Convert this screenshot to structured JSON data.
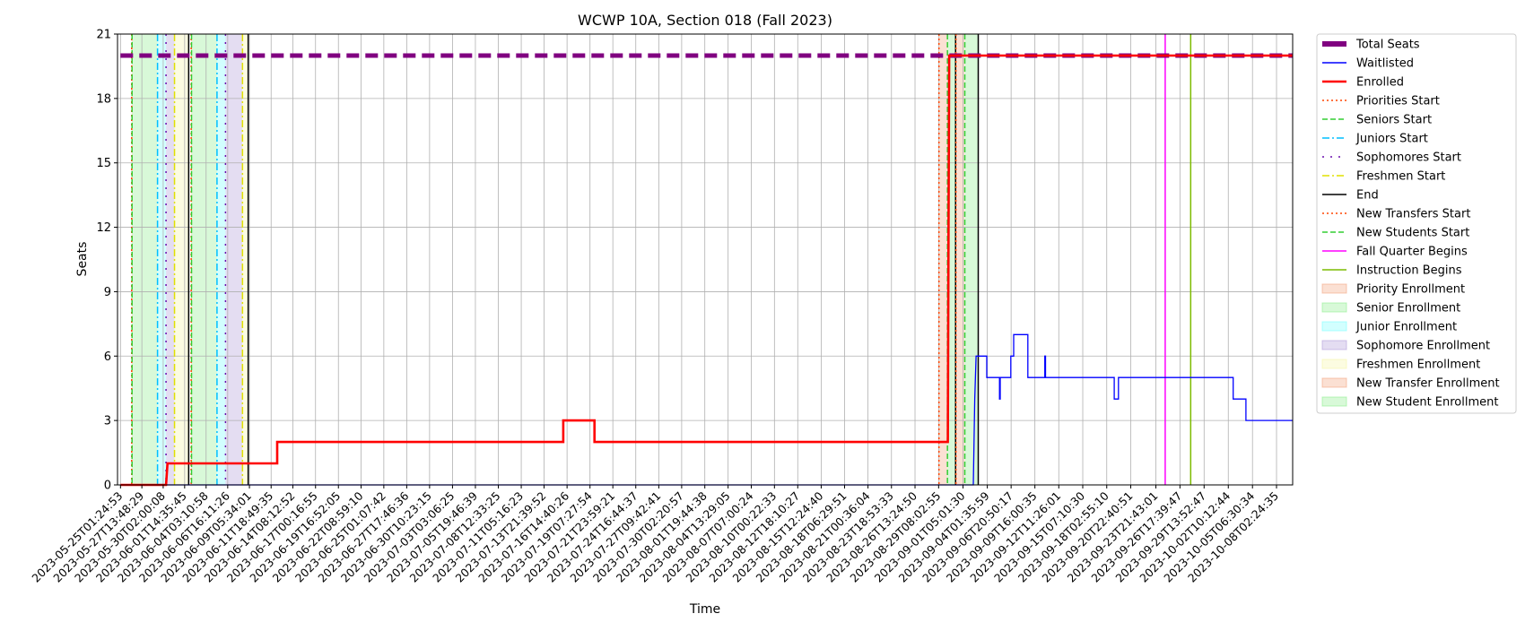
{
  "chart_data": {
    "type": "line",
    "title": "WCWP 10A, Section 018 (Fall 2023)",
    "xlabel": "Time",
    "ylabel": "Seats",
    "x_axis": "datetime",
    "xlim": [
      "2023-05-24T17:00:00",
      "2023-10-10T00:00:00"
    ],
    "ylim": [
      0,
      21
    ],
    "yticks": [
      0,
      3,
      6,
      9,
      12,
      15,
      18,
      21
    ],
    "xticks": [
      "2023-05-25T01:24:53",
      "2023-05-27T13:48:29",
      "2023-05-30T02:00:08",
      "2023-06-01T14:35:45",
      "2023-06-04T03:10:58",
      "2023-06-06T16:11:26",
      "2023-06-09T05:34:01",
      "2023-06-11T18:49:35",
      "2023-06-14T08:12:52",
      "2023-06-17T00:16:55",
      "2023-06-19T16:52:05",
      "2023-06-22T08:59:10",
      "2023-06-25T01:07:42",
      "2023-06-27T17:46:36",
      "2023-06-30T10:23:15",
      "2023-07-03T03:06:25",
      "2023-07-05T19:46:39",
      "2023-07-08T12:33:25",
      "2023-07-11T05:16:23",
      "2023-07-13T21:39:52",
      "2023-07-16T14:40:26",
      "2023-07-19T07:27:54",
      "2023-07-21T23:59:21",
      "2023-07-24T16:44:37",
      "2023-07-27T09:42:41",
      "2023-07-30T02:20:57",
      "2023-08-01T19:44:38",
      "2023-08-04T13:29:05",
      "2023-08-07T07:00:24",
      "2023-08-10T00:22:33",
      "2023-08-12T18:10:27",
      "2023-08-15T12:24:40",
      "2023-08-18T06:29:51",
      "2023-08-21T00:36:04",
      "2023-08-23T18:53:33",
      "2023-08-26T13:24:50",
      "2023-08-29T08:02:55",
      "2023-09-01T05:01:30",
      "2023-09-04T01:35:59",
      "2023-09-06T20:50:17",
      "2023-09-09T16:00:35",
      "2023-09-12T11:26:01",
      "2023-09-15T07:10:30",
      "2023-09-18T02:55:10",
      "2023-09-20T22:40:51",
      "2023-09-23T21:43:01",
      "2023-09-26T17:39:47",
      "2023-09-29T13:52:47",
      "2023-10-02T10:12:44",
      "2023-10-05T06:30:34",
      "2023-10-08T02:24:35"
    ],
    "grid": true,
    "legend_position": "outside right, top",
    "series": [
      {
        "name": "Total Seats",
        "color": "#800080",
        "style": "dashed-thick",
        "points": [
          [
            "2023-05-25T01:24:53",
            20
          ],
          [
            "2023-10-10T00:00:00",
            20
          ]
        ]
      },
      {
        "name": "Waitlisted",
        "color": "#0000ff",
        "style": "solid",
        "points": [
          [
            "2023-05-25T01:24:53",
            0
          ],
          [
            "2023-09-02T10:00:00",
            0
          ],
          [
            "2023-09-02T12:00:00",
            2
          ],
          [
            "2023-09-02T14:00:00",
            4
          ],
          [
            "2023-09-02T18:00:00",
            6
          ],
          [
            "2023-09-04T00:00:00",
            6
          ],
          [
            "2023-09-04T00:00:00",
            5
          ],
          [
            "2023-09-05T12:00:00",
            5
          ],
          [
            "2023-09-05T12:00:00",
            4
          ],
          [
            "2023-09-05T14:00:00",
            4
          ],
          [
            "2023-09-05T14:00:00",
            5
          ],
          [
            "2023-09-06T20:00:00",
            5
          ],
          [
            "2023-09-06T20:00:00",
            6
          ],
          [
            "2023-09-07T04:00:00",
            6
          ],
          [
            "2023-09-07T04:00:00",
            7
          ],
          [
            "2023-09-08T20:00:00",
            7
          ],
          [
            "2023-09-08T20:00:00",
            5
          ],
          [
            "2023-09-10T20:00:00",
            5
          ],
          [
            "2023-09-10T20:00:00",
            6
          ],
          [
            "2023-09-10T22:00:00",
            6
          ],
          [
            "2023-09-10T22:00:00",
            5
          ],
          [
            "2023-09-19T00:00:00",
            5
          ],
          [
            "2023-09-19T00:00:00",
            4
          ],
          [
            "2023-09-19T12:00:00",
            4
          ],
          [
            "2023-09-19T12:00:00",
            5
          ],
          [
            "2023-10-03T00:00:00",
            5
          ],
          [
            "2023-10-03T00:00:00",
            4
          ],
          [
            "2023-10-04T12:00:00",
            4
          ],
          [
            "2023-10-04T12:00:00",
            3
          ],
          [
            "2023-10-10T00:00:00",
            3
          ]
        ]
      },
      {
        "name": "Enrolled",
        "color": "#ff0000",
        "style": "solid-thick",
        "points": [
          [
            "2023-05-25T01:24:53",
            0
          ],
          [
            "2023-05-30T10:00:00",
            0
          ],
          [
            "2023-05-30T14:00:00",
            1
          ],
          [
            "2023-06-12T12:00:00",
            1
          ],
          [
            "2023-06-12T12:00:00",
            2
          ],
          [
            "2023-07-16T04:00:00",
            2
          ],
          [
            "2023-07-16T04:00:00",
            3
          ],
          [
            "2023-07-19T20:00:00",
            3
          ],
          [
            "2023-07-19T20:00:00",
            2
          ],
          [
            "2023-08-30T10:00:00",
            2
          ],
          [
            "2023-08-30T12:00:00",
            12
          ],
          [
            "2023-08-30T14:00:00",
            20
          ],
          [
            "2023-10-10T00:00:00",
            20
          ]
        ]
      }
    ],
    "vlines": [
      {
        "name": "Priorities Start",
        "color": "#ff4500",
        "style": "dotted",
        "dates": [
          "2023-05-26T09:00:00",
          "2023-06-02T09:00:00",
          "2023-08-29T09:00:00"
        ]
      },
      {
        "name": "Seniors Start",
        "color": "#32cd32",
        "style": "dashed",
        "dates": [
          "2023-05-26T10:00:00",
          "2023-06-02T10:00:00"
        ]
      },
      {
        "name": "Juniors Start",
        "color": "#00bfff",
        "style": "dashdot",
        "dates": [
          "2023-05-29T10:00:00",
          "2023-06-05T10:00:00"
        ]
      },
      {
        "name": "Sophomores Start",
        "color": "#6a0dad",
        "style": "loosedot",
        "dates": [
          "2023-05-30T10:00:00",
          "2023-06-06T10:00:00"
        ]
      },
      {
        "name": "Freshmen Start",
        "color": "#e0e000",
        "style": "dashdot",
        "dates": [
          "2023-05-31T10:00:00",
          "2023-06-08T10:00:00"
        ]
      },
      {
        "name": "End",
        "color": "#000000",
        "style": "solid",
        "dates": [
          "2023-06-02T02:00:00",
          "2023-06-09T02:00:00",
          "2023-08-31T08:00:00",
          "2023-09-03T00:00:00"
        ]
      },
      {
        "name": "New Transfers Start",
        "color": "#ff4500",
        "style": "dotted",
        "dates": [
          "2023-08-31T09:00:00"
        ]
      },
      {
        "name": "New Students Start",
        "color": "#32cd32",
        "style": "dashed",
        "dates": [
          "2023-08-30T09:00:00",
          "2023-09-01T10:00:00"
        ]
      },
      {
        "name": "Fall Quarter Begins",
        "color": "#ff00ff",
        "style": "solid",
        "dates": [
          "2023-09-25T00:00:00"
        ]
      },
      {
        "name": "Instruction Begins",
        "color": "#7cbb00",
        "style": "solid",
        "dates": [
          "2023-09-28T00:00:00"
        ]
      }
    ],
    "spans": [
      {
        "name": "Priority Enrollment",
        "color": "#f4a582",
        "ranges": [
          [
            "2023-05-26T09:00:00",
            "2023-05-26T10:00:00"
          ],
          [
            "2023-06-02T09:00:00",
            "2023-06-02T10:00:00"
          ],
          [
            "2023-08-29T09:00:00",
            "2023-08-30T09:00:00"
          ]
        ]
      },
      {
        "name": "Senior Enrollment",
        "color": "#90ee90",
        "ranges": [
          [
            "2023-05-26T10:00:00",
            "2023-05-29T10:00:00"
          ],
          [
            "2023-06-02T10:00:00",
            "2023-06-05T10:00:00"
          ]
        ]
      },
      {
        "name": "Junior Enrollment",
        "color": "#7fffff",
        "ranges": [
          [
            "2023-05-29T10:00:00",
            "2023-05-30T10:00:00"
          ],
          [
            "2023-06-05T10:00:00",
            "2023-06-06T10:00:00"
          ]
        ]
      },
      {
        "name": "Sophomore Enrollment",
        "color": "#b39ddb",
        "ranges": [
          [
            "2023-05-30T10:00:00",
            "2023-05-31T10:00:00"
          ],
          [
            "2023-06-06T10:00:00",
            "2023-06-08T10:00:00"
          ]
        ]
      },
      {
        "name": "Freshmen Enrollment",
        "color": "#f7f7a8",
        "ranges": [
          [
            "2023-05-31T10:00:00",
            "2023-06-02T02:00:00"
          ],
          [
            "2023-06-08T10:00:00",
            "2023-06-09T02:00:00"
          ]
        ]
      },
      {
        "name": "New Transfer Enrollment",
        "color": "#f4a582",
        "ranges": [
          [
            "2023-08-31T09:00:00",
            "2023-09-01T10:00:00"
          ]
        ]
      },
      {
        "name": "New Student Enrollment",
        "color": "#90ee90",
        "ranges": [
          [
            "2023-08-30T09:00:00",
            "2023-08-31T08:00:00"
          ],
          [
            "2023-09-01T10:00:00",
            "2023-09-03T00:00:00"
          ]
        ]
      }
    ],
    "legend": [
      {
        "label": "Total Seats",
        "kind": "line",
        "color": "#800080",
        "style": "thick"
      },
      {
        "label": "Waitlisted",
        "kind": "line",
        "color": "#0000ff",
        "style": "solid"
      },
      {
        "label": "Enrolled",
        "kind": "line",
        "color": "#ff0000",
        "style": "solid-thick"
      },
      {
        "label": "Priorities Start",
        "kind": "line",
        "color": "#ff4500",
        "style": "dotted"
      },
      {
        "label": "Seniors Start",
        "kind": "line",
        "color": "#32cd32",
        "style": "dashed"
      },
      {
        "label": "Juniors Start",
        "kind": "line",
        "color": "#00bfff",
        "style": "dashdot"
      },
      {
        "label": "Sophomores Start",
        "kind": "line",
        "color": "#6a0dad",
        "style": "loosedot"
      },
      {
        "label": "Freshmen Start",
        "kind": "line",
        "color": "#e0e000",
        "style": "dashdot"
      },
      {
        "label": "End",
        "kind": "line",
        "color": "#000000",
        "style": "solid"
      },
      {
        "label": "New Transfers Start",
        "kind": "line",
        "color": "#ff4500",
        "style": "dotted"
      },
      {
        "label": "New Students Start",
        "kind": "line",
        "color": "#32cd32",
        "style": "dashed"
      },
      {
        "label": "Fall Quarter Begins",
        "kind": "line",
        "color": "#ff00ff",
        "style": "solid"
      },
      {
        "label": "Instruction Begins",
        "kind": "line",
        "color": "#7cbb00",
        "style": "solid"
      },
      {
        "label": "Priority Enrollment",
        "kind": "patch",
        "color": "#f4a582"
      },
      {
        "label": "Senior Enrollment",
        "kind": "patch",
        "color": "#90ee90"
      },
      {
        "label": "Junior Enrollment",
        "kind": "patch",
        "color": "#7fffff"
      },
      {
        "label": "Sophomore Enrollment",
        "kind": "patch",
        "color": "#b39ddb"
      },
      {
        "label": "Freshmen Enrollment",
        "kind": "patch",
        "color": "#f7f7a8"
      },
      {
        "label": "New Transfer Enrollment",
        "kind": "patch",
        "color": "#f4a582"
      },
      {
        "label": "New Student Enrollment",
        "kind": "patch",
        "color": "#90ee90"
      }
    ]
  }
}
